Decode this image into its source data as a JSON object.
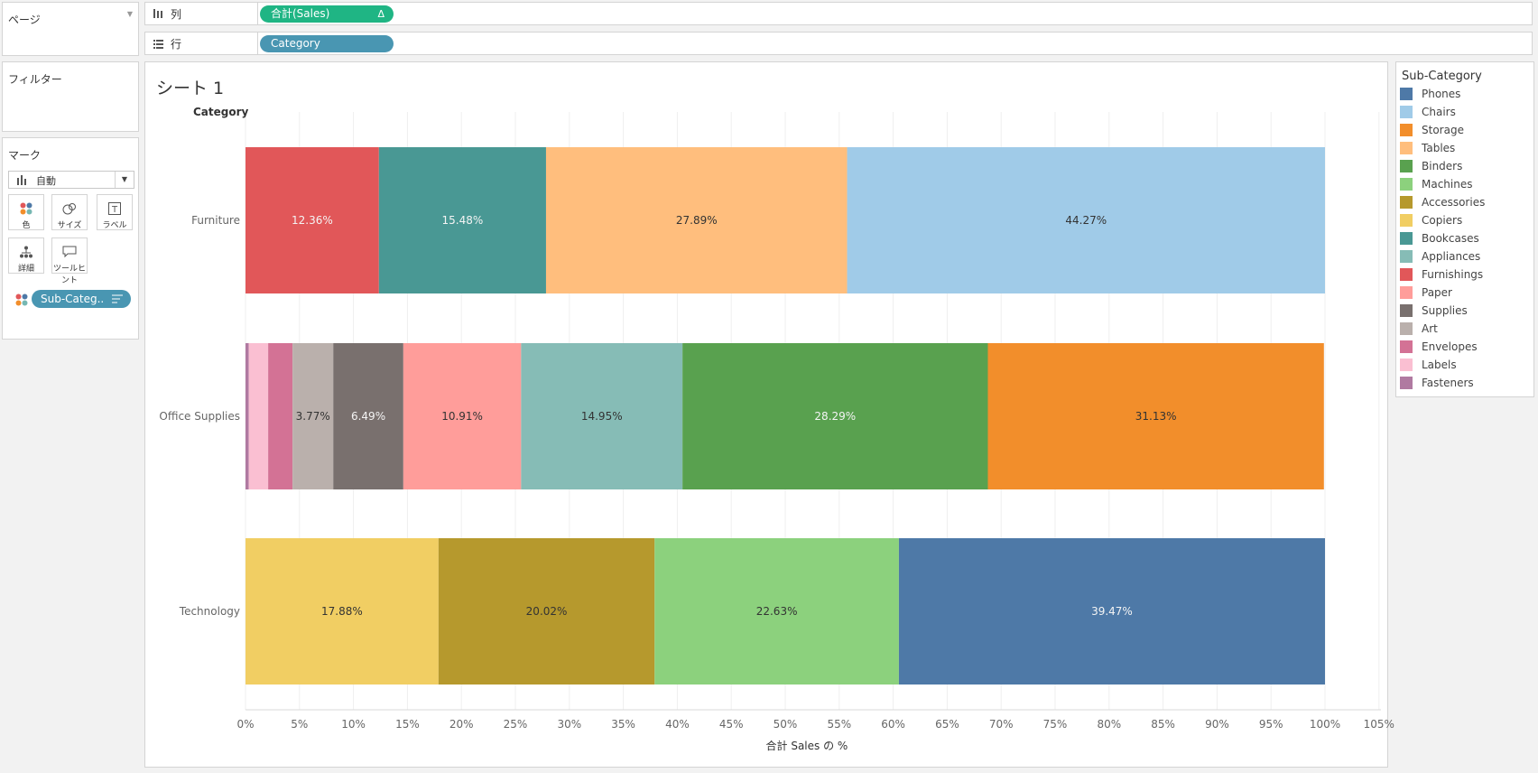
{
  "left_panel": {
    "pages_title": "ページ",
    "filters_title": "フィルター",
    "marks_title": "マーク",
    "mark_type": "自動",
    "buttons": [
      {
        "label": "色",
        "icon": "color-dots-icon"
      },
      {
        "label": "サイズ",
        "icon": "size-icon"
      },
      {
        "label": "ラベル",
        "icon": "label-icon"
      },
      {
        "label": "詳細",
        "icon": "detail-icon"
      },
      {
        "label": "ツールヒント",
        "icon": "tooltip-icon"
      }
    ],
    "color_pill": "Sub-Categ.."
  },
  "shelves": {
    "columns_label": "列",
    "columns_pill": "合計(Sales)",
    "columns_delta": "Δ",
    "rows_label": "行",
    "rows_pill": "Category"
  },
  "sheet": {
    "title": "シート 1",
    "row_header": "Category"
  },
  "legend": {
    "title": "Sub-Category",
    "items": [
      {
        "name": "Phones",
        "color": "#4e79a7"
      },
      {
        "name": "Chairs",
        "color": "#a0cbe8"
      },
      {
        "name": "Storage",
        "color": "#f28e2b"
      },
      {
        "name": "Tables",
        "color": "#ffbe7d"
      },
      {
        "name": "Binders",
        "color": "#59a14f"
      },
      {
        "name": "Machines",
        "color": "#8cd17d"
      },
      {
        "name": "Accessories",
        "color": "#b6992d"
      },
      {
        "name": "Copiers",
        "color": "#f1ce63"
      },
      {
        "name": "Bookcases",
        "color": "#499894"
      },
      {
        "name": "Appliances",
        "color": "#86bcb6"
      },
      {
        "name": "Furnishings",
        "color": "#e15759"
      },
      {
        "name": "Paper",
        "color": "#ff9d9a"
      },
      {
        "name": "Supplies",
        "color": "#79706e"
      },
      {
        "name": "Art",
        "color": "#bab0ac"
      },
      {
        "name": "Envelopes",
        "color": "#d37295"
      },
      {
        "name": "Labels",
        "color": "#fabfd2"
      },
      {
        "name": "Fasteners",
        "color": "#b07aa1"
      }
    ]
  },
  "chart_data": {
    "type": "bar",
    "orientation": "horizontal",
    "stacked": true,
    "xlabel": "合計 Sales の %",
    "ylabel": "Category",
    "xlim": [
      0,
      105
    ],
    "xticks": [
      "0%",
      "5%",
      "10%",
      "15%",
      "20%",
      "25%",
      "30%",
      "35%",
      "40%",
      "45%",
      "50%",
      "55%",
      "60%",
      "65%",
      "70%",
      "75%",
      "80%",
      "85%",
      "90%",
      "95%",
      "100%",
      "105%"
    ],
    "categories": [
      "Furniture",
      "Office Supplies",
      "Technology"
    ],
    "bars": [
      {
        "category": "Furniture",
        "segments": [
          {
            "name": "Furnishings",
            "value": 12.36,
            "label": "12.36%"
          },
          {
            "name": "Bookcases",
            "value": 15.48,
            "label": "15.48%"
          },
          {
            "name": "Tables",
            "value": 27.89,
            "label": "27.89%"
          },
          {
            "name": "Chairs",
            "value": 44.27,
            "label": "44.27%"
          }
        ]
      },
      {
        "category": "Office Supplies",
        "segments": [
          {
            "name": "Fasteners",
            "value": 0.3,
            "label": ""
          },
          {
            "name": "Labels",
            "value": 1.8,
            "label": ""
          },
          {
            "name": "Envelopes",
            "value": 2.26,
            "label": ""
          },
          {
            "name": "Art",
            "value": 3.77,
            "label": "3.77%"
          },
          {
            "name": "Supplies",
            "value": 6.49,
            "label": "6.49%"
          },
          {
            "name": "Paper",
            "value": 10.91,
            "label": "10.91%"
          },
          {
            "name": "Appliances",
            "value": 14.95,
            "label": "14.95%"
          },
          {
            "name": "Binders",
            "value": 28.29,
            "label": "28.29%"
          },
          {
            "name": "Storage",
            "value": 31.13,
            "label": "31.13%"
          }
        ]
      },
      {
        "category": "Technology",
        "segments": [
          {
            "name": "Copiers",
            "value": 17.88,
            "label": "17.88%"
          },
          {
            "name": "Accessories",
            "value": 20.02,
            "label": "20.02%"
          },
          {
            "name": "Machines",
            "value": 22.63,
            "label": "22.63%"
          },
          {
            "name": "Phones",
            "value": 39.47,
            "label": "39.47%"
          }
        ]
      }
    ],
    "light_label_segments": [
      "Furnishings",
      "Bookcases",
      "Supplies",
      "Binders",
      "Phones"
    ]
  }
}
